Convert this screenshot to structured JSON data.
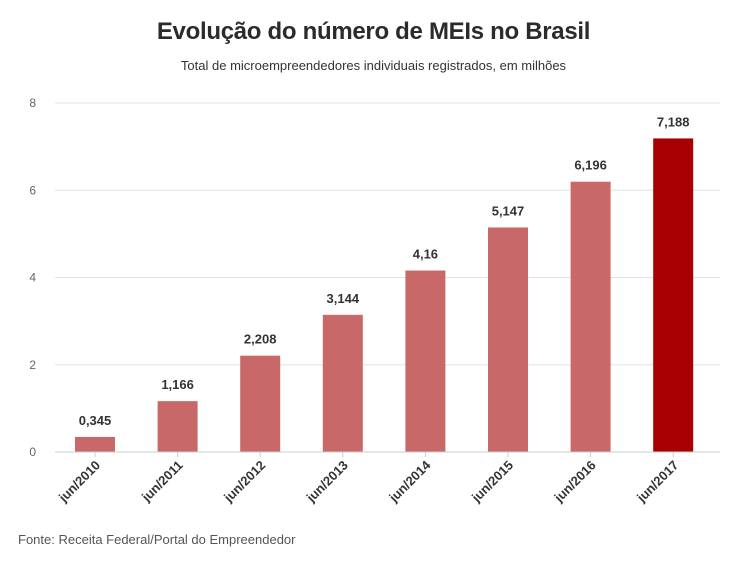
{
  "chart_data": {
    "type": "bar",
    "title": "Evolução do número de MEIs no Brasil",
    "subtitle": "Total de microempreendedores individuais registrados, em milhões",
    "categories": [
      "jun/2010",
      "jun/2011",
      "jun/2012",
      "jun/2013",
      "jun/2014",
      "jun/2015",
      "jun/2016",
      "jun/2017"
    ],
    "values": [
      0.345,
      1.166,
      2.208,
      3.144,
      4.16,
      5.147,
      6.196,
      7.188
    ],
    "value_labels": [
      "0,345",
      "1,166",
      "2,208",
      "3,144",
      "4,16",
      "5,147",
      "6,196",
      "7,188"
    ],
    "ylim": [
      0,
      8
    ],
    "yticks": [
      "0",
      "2",
      "4",
      "6",
      "8"
    ],
    "xlabel": "",
    "ylabel": "",
    "grid": true,
    "colors": {
      "bar": "#c96868",
      "highlight": "#a80000",
      "grid": "#e3e3e3",
      "axis": "#cccccc"
    },
    "highlight_index": 7
  },
  "source": "Fonte: Receita Federal/Portal do Empreendedor"
}
